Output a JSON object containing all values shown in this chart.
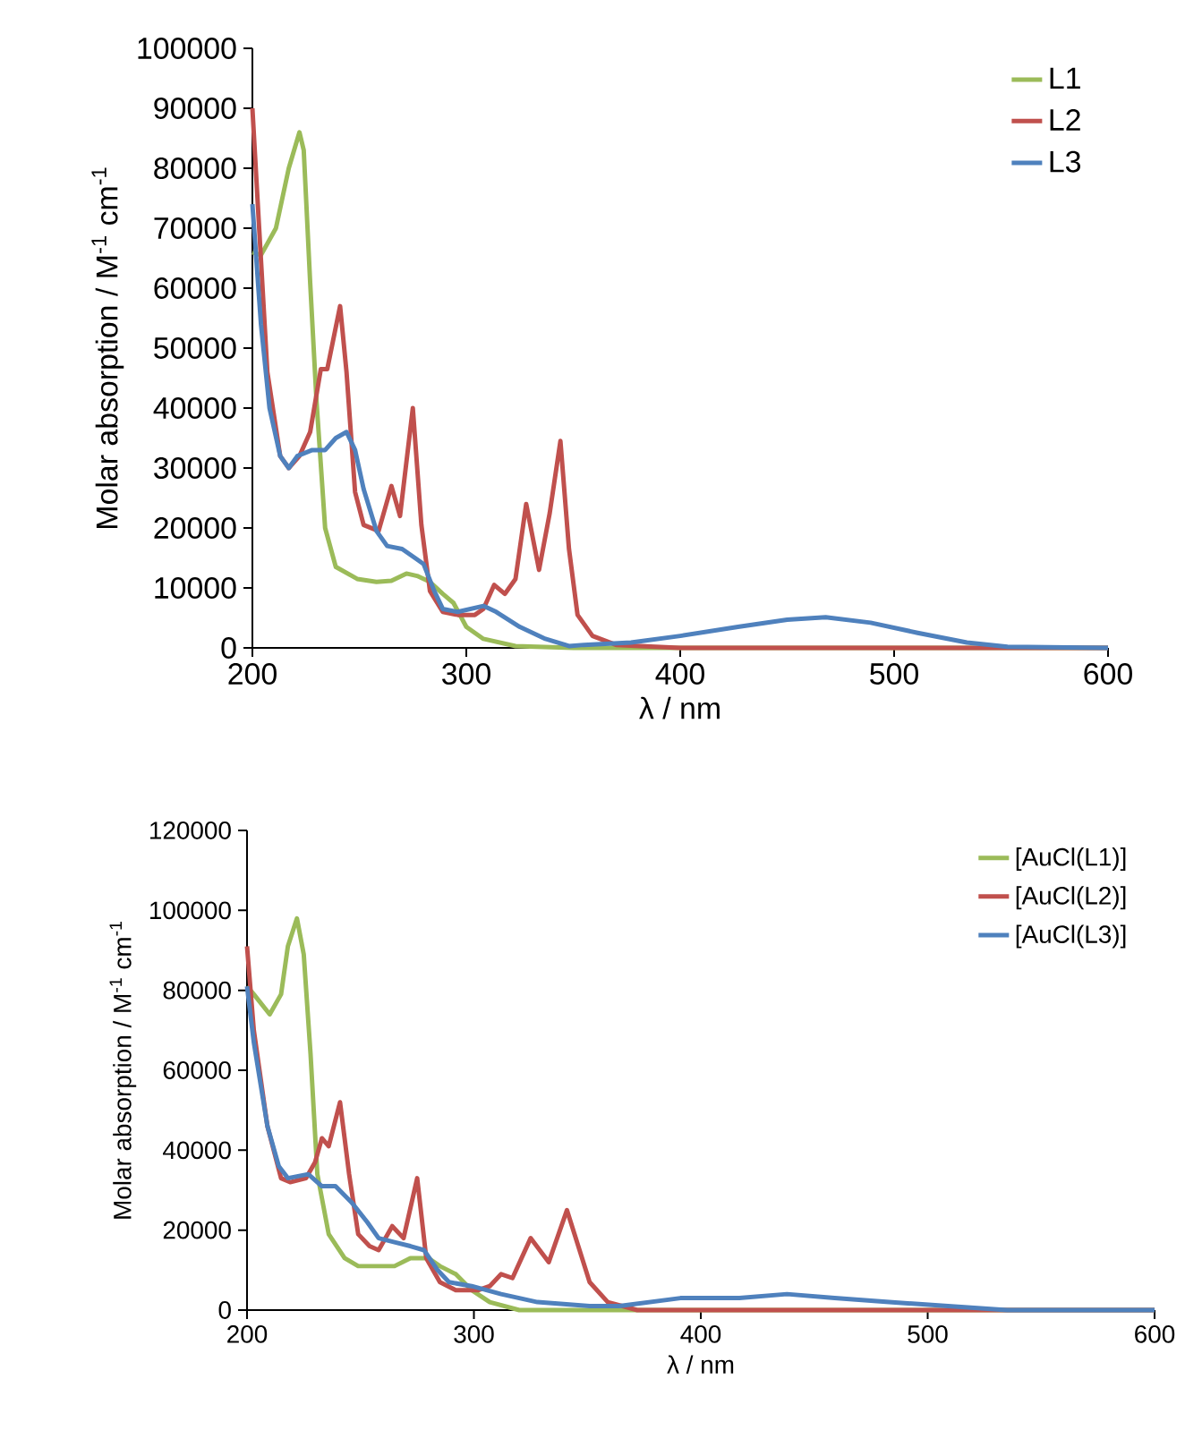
{
  "chart_data": [
    {
      "type": "line",
      "xlabel": "λ / nm",
      "ylabel": "Molar absorption / M$^{-1}$ cm$^{-1}$",
      "xlim": [
        200,
        600
      ],
      "xticks": [
        200,
        300,
        400,
        500,
        600
      ],
      "ylim": [
        0,
        100000
      ],
      "yticks": [
        0,
        10000,
        20000,
        30000,
        40000,
        50000,
        60000,
        70000,
        80000,
        90000,
        100000
      ],
      "legend": "top right",
      "grid": false,
      "marker": "none",
      "line_style": "solid",
      "series": [
        {
          "name": "L1",
          "color": "#9bbb59",
          "x": [
            200,
            204,
            211,
            217,
            222,
            224,
            227,
            230,
            234,
            239,
            249,
            258,
            265,
            272,
            277,
            283,
            289,
            294,
            300,
            308,
            323,
            350,
            400,
            500,
            600
          ],
          "values": [
            66000,
            65500,
            70000,
            80000,
            86000,
            83000,
            61000,
            41000,
            20000,
            13500,
            11500,
            11000,
            11200,
            12400,
            12000,
            11000,
            9000,
            7500,
            3500,
            1500,
            300,
            0,
            0,
            0,
            0
          ]
        },
        {
          "name": "L2",
          "color": "#c0504d",
          "x": [
            200,
            203,
            207,
            213,
            217,
            222,
            227,
            232,
            235,
            241,
            244,
            248,
            252,
            259,
            265,
            269,
            275,
            279,
            283,
            289,
            296,
            304,
            308,
            313,
            318,
            323,
            328,
            334,
            339,
            344,
            348,
            352,
            359,
            370,
            400,
            500,
            600
          ],
          "values": [
            90000,
            71000,
            46000,
            32000,
            30000,
            32000,
            36000,
            46500,
            46500,
            57000,
            46000,
            26000,
            20500,
            19500,
            27000,
            22000,
            40000,
            20500,
            9500,
            6000,
            5500,
            5500,
            6500,
            10500,
            9000,
            11500,
            24000,
            13000,
            22500,
            34500,
            16500,
            5500,
            2000,
            500,
            0,
            0,
            0
          ]
        },
        {
          "name": "L3",
          "color": "#4f81bd",
          "x": [
            200,
            201,
            204,
            208,
            213,
            217,
            221,
            228,
            234,
            239,
            244,
            248,
            252,
            258,
            263,
            270,
            276,
            280,
            285,
            289,
            296,
            308,
            314,
            325,
            337,
            348,
            355,
            377,
            400,
            427,
            450,
            468,
            489,
            511,
            534,
            553,
            600
          ],
          "values": [
            74000,
            69000,
            54000,
            40000,
            32000,
            30000,
            32000,
            33000,
            33000,
            35000,
            36000,
            33000,
            26500,
            19500,
            17000,
            16500,
            15000,
            14000,
            9500,
            6500,
            6000,
            7000,
            6000,
            3500,
            1500,
            300,
            500,
            900,
            2000,
            3500,
            4700,
            5100,
            4200,
            2500,
            900,
            200,
            0
          ]
        }
      ]
    },
    {
      "type": "line",
      "xlabel": "λ / nm",
      "ylabel": "Molar absorption / M$^{-1}$ cm$^{-1}$",
      "xlim": [
        200,
        600
      ],
      "xticks": [
        200,
        300,
        400,
        500,
        600
      ],
      "ylim": [
        0,
        120000
      ],
      "yticks": [
        0,
        20000,
        40000,
        60000,
        80000,
        100000,
        120000
      ],
      "legend": "top right",
      "grid": false,
      "marker": "none",
      "line_style": "solid",
      "series": [
        {
          "name": "[AuCl(L1)]",
          "color": "#9bbb59",
          "x": [
            200,
            203,
            210,
            215,
            218,
            222,
            225,
            228,
            231,
            236,
            243,
            249,
            257,
            265,
            272,
            280,
            285,
            292,
            299,
            307,
            320,
            350,
            400,
            500,
            600
          ],
          "values": [
            81000,
            79000,
            74000,
            79000,
            91000,
            98000,
            89000,
            64000,
            34000,
            19000,
            13000,
            11000,
            11000,
            11000,
            13000,
            13000,
            11000,
            9000,
            5000,
            2000,
            0,
            0,
            0,
            0,
            0
          ]
        },
        {
          "name": "[AuCl(L2)]",
          "color": "#c0504d",
          "x": [
            200,
            203,
            209,
            215,
            219,
            226,
            230,
            233,
            236,
            241,
            245,
            249,
            254,
            258,
            264,
            269,
            275,
            279,
            285,
            292,
            302,
            307,
            312,
            317,
            325,
            333,
            341,
            346,
            351,
            359,
            372,
            400,
            500,
            600
          ],
          "values": [
            91000,
            70000,
            46000,
            33000,
            32000,
            33000,
            37000,
            43000,
            41000,
            52000,
            34000,
            19000,
            16000,
            15000,
            21000,
            18000,
            33000,
            13000,
            7000,
            5000,
            5000,
            6000,
            9000,
            8000,
            18000,
            12000,
            25000,
            16000,
            7000,
            2000,
            0,
            0,
            0,
            0
          ]
        },
        {
          "name": "[AuCl(L3)]",
          "color": "#4f81bd",
          "x": [
            200,
            203,
            209,
            214,
            218,
            227,
            233,
            239,
            246,
            253,
            258,
            265,
            272,
            278,
            284,
            289,
            299,
            312,
            328,
            351,
            364,
            391,
            417,
            438,
            459,
            483,
            509,
            535,
            600
          ],
          "values": [
            81000,
            67000,
            46000,
            36000,
            33000,
            34000,
            31000,
            31000,
            27000,
            22000,
            18000,
            17000,
            16000,
            15000,
            10000,
            7000,
            6000,
            4000,
            2000,
            1000,
            1000,
            3000,
            3000,
            4000,
            3000,
            2000,
            1000,
            0,
            0
          ]
        }
      ]
    }
  ]
}
